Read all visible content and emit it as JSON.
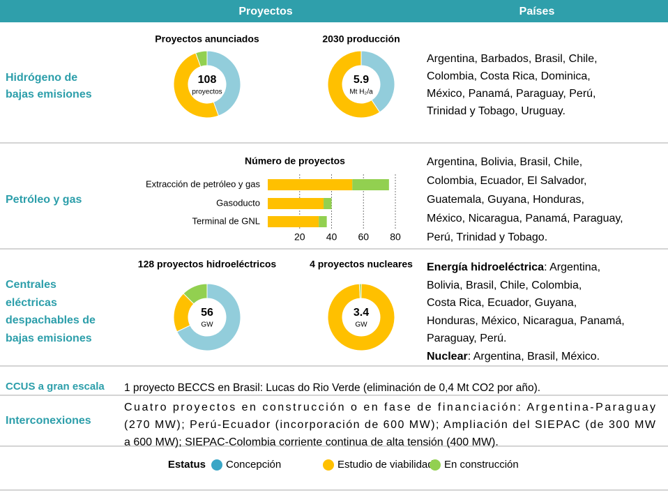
{
  "table": {
    "headers": [
      "Proyectos",
      "Países"
    ],
    "rows": [
      {
        "label": [
          "Hidrógeno de",
          "bajas emisiones"
        ],
        "countries": [
          "Argentina, Barbados, Brasil, Chile,",
          "Colombia, Costa Rica, Dominica,",
          "México, Panamá, Paraguay, Perú,",
          "Trinidad y Tobago, Uruguay."
        ]
      },
      {
        "label": [
          "Petróleo y gas"
        ],
        "countries": [
          "Argentina, Bolivia, Brasil, Chile,",
          "Colombia, Ecuador, El Salvador,",
          "Guatemala, Guyana, Honduras,",
          "México, Nicaragua, Panamá, Paraguay,",
          "Perú, Trinidad y Tobago."
        ]
      },
      {
        "label": [
          "Centrales",
          "eléctricas",
          "despachables de",
          "bajas emisiones"
        ],
        "countries": [
          {
            "bold": "Energía hidroeléctrica",
            "text": ": Argentina,"
          },
          "Bolivia, Brasil, Chile, Colombia,",
          "Costa Rica, Ecuador, Guyana,",
          "Honduras, México, Nicaragua, Panamá,",
          "Paraguay, Perú.",
          {
            "bold": "Nuclear",
            "text": ": Argentina, Brasil, México."
          }
        ]
      },
      {
        "label": [
          "CCUS a gran escala"
        ],
        "text": [
          "1 proyecto BECCS en Brasil: Lucas do Rio Verde (eliminación de 0,4 Mt CO2 por año)."
        ]
      },
      {
        "label": [
          "Interconexiones"
        ],
        "text": [
          "Cuatro proyectos en construcción o en fase de financiación: Argentina-Paraguay",
          "(270 MW); Perú-Ecuador (incorporación de 600 MW); Ampliación del SIEPAC (de 300 MW",
          "a 600 MW); SIEPAC-Colombia corriente continua de alta tensión (400 MW)."
        ]
      }
    ]
  },
  "chart_data": [
    {
      "type": "donut",
      "title": "Proyectos anunciados",
      "total": 108,
      "unit": "proyectos",
      "values": [
        48,
        54,
        6
      ],
      "colors": [
        "#92cddb",
        "#ffc000",
        "#92d050"
      ]
    },
    {
      "type": "donut",
      "title": "2030 producción",
      "total": 5.9,
      "unit": "Mt H₂/a",
      "values": [
        2.4,
        3.5
      ],
      "colors": [
        "#92cddb",
        "#ffc000"
      ]
    },
    {
      "type": "bar",
      "orientation": "horizontal",
      "stacked": true,
      "title": "Número de proyectos",
      "categories": [
        "Extracción de petróleo y gas",
        "Gasoducto",
        "Terminal de GNL"
      ],
      "series": [
        {
          "color": "#ffc000",
          "values": [
            53,
            35,
            32
          ]
        },
        {
          "color": "#92d050",
          "values": [
            23,
            5,
            5
          ]
        }
      ],
      "xlim": [
        0,
        80
      ],
      "xticks": [
        20,
        40,
        60,
        80
      ],
      "grid": true
    },
    {
      "type": "donut",
      "title": "128 proyectos hidroeléctricos",
      "total": 56,
      "unit": "GW",
      "values": [
        38,
        11,
        7
      ],
      "colors": [
        "#92cddb",
        "#ffc000",
        "#92d050"
      ]
    },
    {
      "type": "donut",
      "title": "4 proyectos nucleares",
      "total": 3.4,
      "unit": "GW",
      "values": [
        3.37,
        0.03
      ],
      "colors": [
        "#ffc000",
        "#92d050"
      ]
    }
  ],
  "legend": {
    "title": "Estatus",
    "items": [
      {
        "name": "Concepción",
        "color": "#3aa6c6"
      },
      {
        "name": "Estudio de viabilidad",
        "color": "#ffc000"
      },
      {
        "name": "En construcción",
        "color": "#92d050"
      }
    ]
  }
}
